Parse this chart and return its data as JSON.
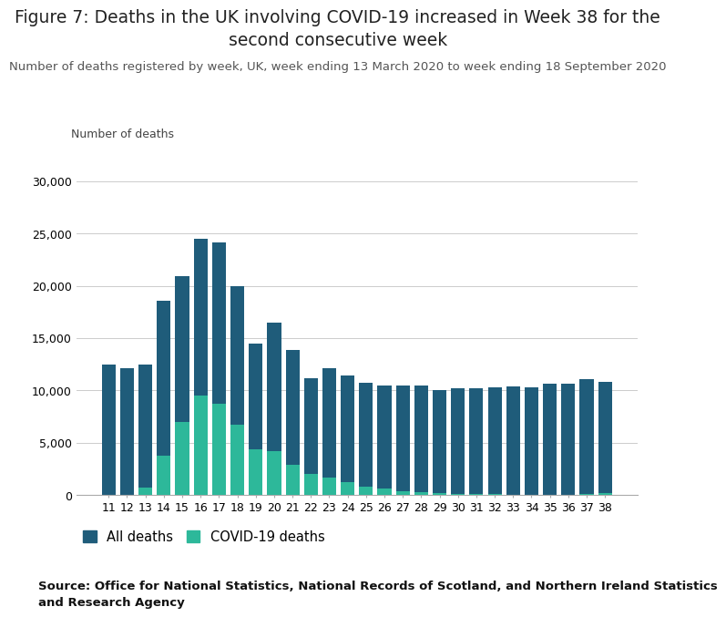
{
  "title": "Figure 7: Deaths in the UK involving COVID-19 increased in Week 38 for the\nsecond consecutive week",
  "subtitle": "Number of deaths registered by week, UK, week ending 13 March 2020 to week ending 18 September 2020",
  "ylabel": "Number of deaths",
  "source": "Source: Office for National Statistics, National Records of Scotland, and Northern Ireland Statistics\nand Research Agency",
  "weeks": [
    11,
    12,
    13,
    14,
    15,
    16,
    17,
    18,
    19,
    20,
    21,
    22,
    23,
    24,
    25,
    26,
    27,
    28,
    29,
    30,
    31,
    32,
    33,
    34,
    35,
    36,
    37,
    38
  ],
  "all_deaths": [
    12500,
    12100,
    12500,
    18600,
    20900,
    24500,
    24100,
    20000,
    14500,
    16500,
    13900,
    11200,
    12100,
    11400,
    10700,
    10500,
    10500,
    10500,
    10000,
    10200,
    10200,
    10300,
    10400,
    10300,
    10600,
    10600,
    11100,
    10800
  ],
  "covid_deaths": [
    0,
    0,
    700,
    3800,
    7000,
    9500,
    8700,
    6700,
    4400,
    4200,
    2900,
    2000,
    1700,
    1200,
    800,
    600,
    400,
    300,
    200,
    150,
    100,
    80,
    60,
    50,
    40,
    50,
    80,
    158
  ],
  "all_color": "#1f5c7a",
  "covid_color": "#2db89a",
  "background_color": "#ffffff",
  "ylim": [
    0,
    32000
  ],
  "yticks": [
    0,
    5000,
    10000,
    15000,
    20000,
    25000,
    30000
  ],
  "grid_color": "#cccccc",
  "title_fontsize": 13.5,
  "subtitle_fontsize": 9.5,
  "source_fontsize": 9.5,
  "tick_fontsize": 9,
  "legend_fontsize": 10.5
}
